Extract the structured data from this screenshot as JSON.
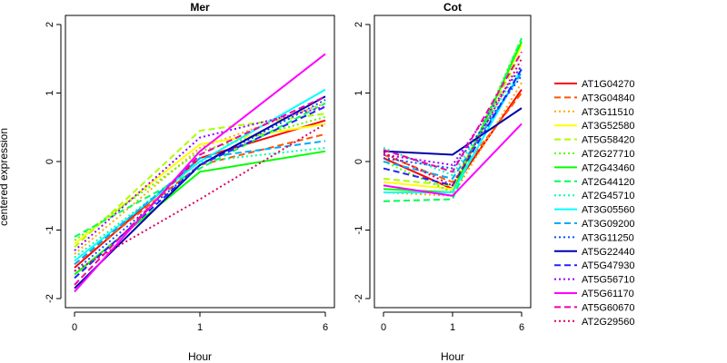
{
  "chart_data": {
    "type": "line",
    "ylabel": "centered expression",
    "xlabel": "Hour",
    "ylim": [
      -2,
      2
    ],
    "yticks": [
      "-2",
      "-1",
      "0",
      "1",
      "2"
    ],
    "legend_placement": "right",
    "series": [
      {
        "name": "AT1G04270",
        "color": "#ff0000",
        "dash": "solid"
      },
      {
        "name": "AT3G04840",
        "color": "#ff5500",
        "dash": "dashed"
      },
      {
        "name": "AT3G11510",
        "color": "#ffaa00",
        "dash": "dotted"
      },
      {
        "name": "AT3G52580",
        "color": "#ffff00",
        "dash": "solid"
      },
      {
        "name": "AT5G58420",
        "color": "#aaff00",
        "dash": "dashed"
      },
      {
        "name": "AT2G27710",
        "color": "#55ff00",
        "dash": "dotted"
      },
      {
        "name": "AT2G43460",
        "color": "#00ff00",
        "dash": "solid"
      },
      {
        "name": "AT2G44120",
        "color": "#00ff55",
        "dash": "dashed"
      },
      {
        "name": "AT2G45710",
        "color": "#00ffaa",
        "dash": "dotted"
      },
      {
        "name": "AT3G05560",
        "color": "#00ffff",
        "dash": "solid"
      },
      {
        "name": "AT3G09200",
        "color": "#00aaff",
        "dash": "dashed"
      },
      {
        "name": "AT3G11250",
        "color": "#0055ff",
        "dash": "dotted"
      },
      {
        "name": "AT5G22440",
        "color": "#0000aa",
        "dash": "solid"
      },
      {
        "name": "AT5G47930",
        "color": "#2222ff",
        "dash": "dashed"
      },
      {
        "name": "AT5G56710",
        "color": "#9900ff",
        "dash": "dotted"
      },
      {
        "name": "AT5G61170",
        "color": "#ff00ff",
        "dash": "solid"
      },
      {
        "name": "AT5G60670",
        "color": "#ee00aa",
        "dash": "dashed"
      },
      {
        "name": "AT2G29560",
        "color": "#dd0066",
        "dash": "dotted"
      }
    ],
    "panels": [
      {
        "title": "Mer",
        "x": [
          "0",
          "1",
          "6"
        ],
        "values": [
          [
            -1.55,
            0.05,
            0.6
          ],
          [
            -1.5,
            -0.05,
            0.4
          ],
          [
            -1.35,
            0.2,
            0.85
          ],
          [
            -1.2,
            0.25,
            0.55
          ],
          [
            -1.25,
            0.45,
            0.7
          ],
          [
            -1.15,
            0.15,
            0.65
          ],
          [
            -1.65,
            -0.15,
            0.15
          ],
          [
            -1.1,
            -0.1,
            0.85
          ],
          [
            -1.4,
            0.0,
            0.2
          ],
          [
            -1.45,
            0.0,
            1.05
          ],
          [
            -1.5,
            0.05,
            0.3
          ],
          [
            -1.6,
            -0.05,
            0.9
          ],
          [
            -1.85,
            -0.05,
            0.95
          ],
          [
            -1.7,
            -0.05,
            0.8
          ],
          [
            -1.3,
            0.35,
            0.8
          ],
          [
            -1.9,
            0.15,
            1.57
          ],
          [
            -1.8,
            0.1,
            0.95
          ],
          [
            -1.6,
            -0.55,
            0.55
          ]
        ]
      },
      {
        "title": "Cot",
        "x": [
          "0",
          "1",
          "6"
        ],
        "values": [
          [
            0.05,
            -0.4,
            1.05
          ],
          [
            0.1,
            -0.3,
            1.0
          ],
          [
            -0.45,
            -0.5,
            1.15
          ],
          [
            -0.3,
            -0.4,
            1.7
          ],
          [
            -0.25,
            -0.35,
            1.6
          ],
          [
            0.0,
            -0.45,
            1.8
          ],
          [
            -0.4,
            -0.45,
            1.75
          ],
          [
            -0.58,
            -0.55,
            1.8
          ],
          [
            0.2,
            -0.2,
            1.4
          ],
          [
            -0.45,
            -0.45,
            1.35
          ],
          [
            0.0,
            -0.25,
            1.3
          ],
          [
            0.05,
            -0.1,
            1.25
          ],
          [
            0.15,
            0.1,
            0.78
          ],
          [
            -0.1,
            -0.35,
            1.35
          ],
          [
            0.1,
            -0.05,
            1.4
          ],
          [
            -0.35,
            -0.5,
            0.55
          ],
          [
            0.17,
            -0.15,
            1.6
          ],
          [
            0.13,
            -0.35,
            1.5
          ]
        ]
      }
    ]
  }
}
